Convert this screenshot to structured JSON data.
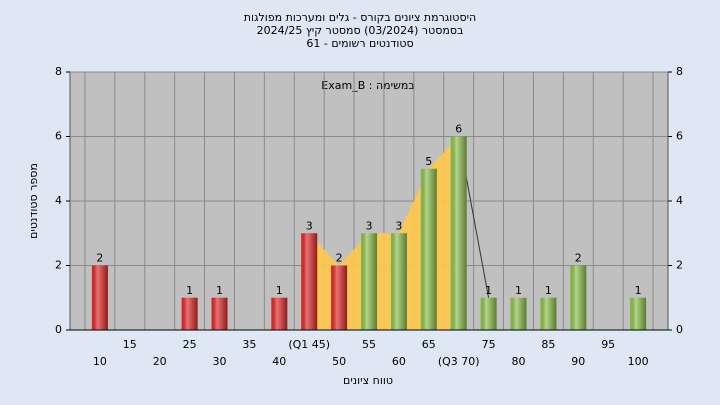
{
  "chart_data": {
    "type": "bar",
    "title": [
      "היסטוגרמת ציונים בקורס - גלים ומערכות מפולגות",
      "בסמסטר  (03/2024)  סמסטר קיץ  2024/25",
      "סטודנטים רשומים - 61"
    ],
    "annotation": "Exam_B : במשימה",
    "x_label": "טווח ציונים",
    "y_label": "מספר סטודנטים",
    "categories": [
      "10",
      "15",
      "20",
      "25",
      "30",
      "35",
      "40",
      "(Q1 45)",
      "50",
      "55",
      "60",
      "65",
      "(Q3 70)",
      "75",
      "80",
      "85",
      "90",
      "95",
      "100"
    ],
    "values": [
      2,
      0,
      0,
      1,
      1,
      0,
      1,
      3,
      2,
      3,
      3,
      5,
      6,
      1,
      1,
      1,
      2,
      0,
      1
    ],
    "colors": [
      "#e02828",
      "#e02828",
      "#e02828",
      "#e02828",
      "#e02828",
      "#e02828",
      "#e02828",
      "#e02828",
      "#e02828",
      "#8cc04a",
      "#8cc04a",
      "#8cc04a",
      "#8cc04a",
      "#8cc04a",
      "#8cc04a",
      "#8cc04a",
      "#8cc04a",
      "#8cc04a",
      "#8cc04a"
    ],
    "ylim": [
      0,
      8
    ],
    "yticks": [
      0,
      2,
      4,
      6,
      8
    ],
    "grid": true
  }
}
